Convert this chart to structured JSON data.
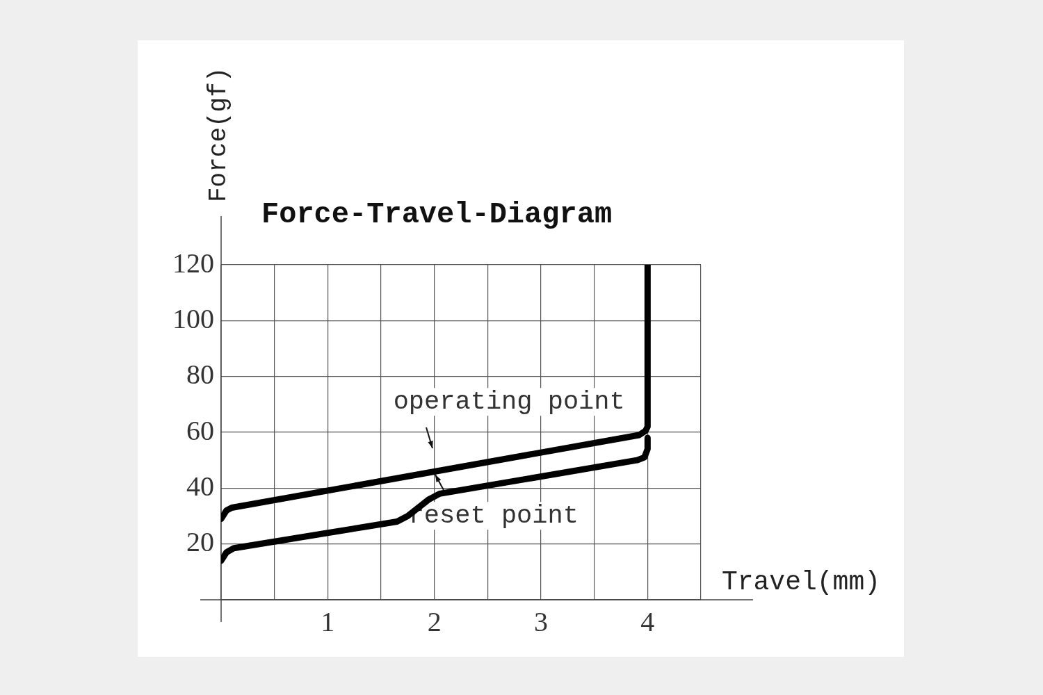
{
  "chart_data": {
    "type": "line",
    "title": "Force-Travel-Diagram",
    "xlabel": "Travel(mm)",
    "ylabel": "Force(gf)",
    "xlim": [
      0,
      4.5
    ],
    "xticks": [
      {
        "value": 0,
        "label": null
      },
      {
        "value": 0.5,
        "label": null
      },
      1,
      {
        "value": 1.5,
        "label": null
      },
      2,
      {
        "value": 2.5,
        "label": null
      },
      3,
      {
        "value": 3.5,
        "label": null
      },
      4,
      {
        "value": 4.5,
        "label": null
      }
    ],
    "ylim": [
      0,
      120
    ],
    "yticks": [
      {
        "value": 0,
        "label": null
      },
      20,
      40,
      60,
      80,
      100,
      120
    ],
    "grid": true,
    "legend": false,
    "marker": "none",
    "line_style": "solid",
    "series": [
      {
        "color": "#000000",
        "x": [
          0,
          0.05,
          0.1,
          3.92,
          3.98,
          4,
          4
        ],
        "values": [
          29,
          32,
          33,
          59,
          60.5,
          62,
          120
        ]
      },
      {
        "color": "#000000",
        "x": [
          0,
          0.05,
          0.12,
          1.65,
          1.75,
          1.95,
          2.05,
          3.9,
          3.97,
          4,
          4
        ],
        "values": [
          14,
          17,
          18.5,
          28,
          30,
          36,
          38,
          50,
          51,
          54,
          58
        ]
      }
    ],
    "annotations": [
      {
        "text": "operating point",
        "x": 2,
        "y": 47
      },
      {
        "text": "reset point",
        "x": 2,
        "y": 47
      }
    ]
  }
}
